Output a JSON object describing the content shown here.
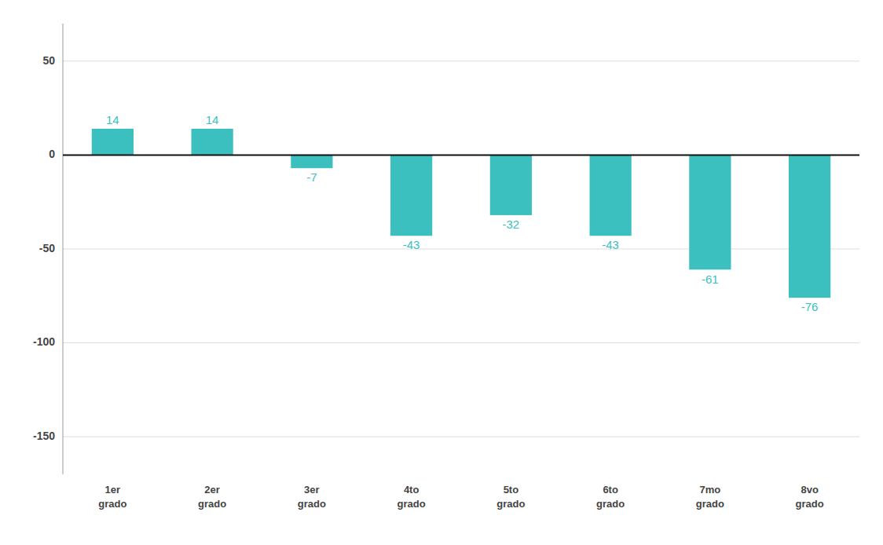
{
  "chart_data": {
    "type": "bar",
    "categories": [
      "1er\ngrado",
      "2er\ngrado",
      "3er\ngrado",
      "4to\ngrado",
      "5to\ngrado",
      "6to\ngrado",
      "7mo\ngrado",
      "8vo\ngrado"
    ],
    "values": [
      14,
      14,
      -7,
      -43,
      -32,
      -43,
      -61,
      -76
    ],
    "color": "#3BBFBF",
    "ylim": [
      -170,
      70
    ],
    "yticks": [
      -150,
      -100,
      -50,
      0,
      50
    ],
    "grid": true,
    "data_labels": true
  }
}
